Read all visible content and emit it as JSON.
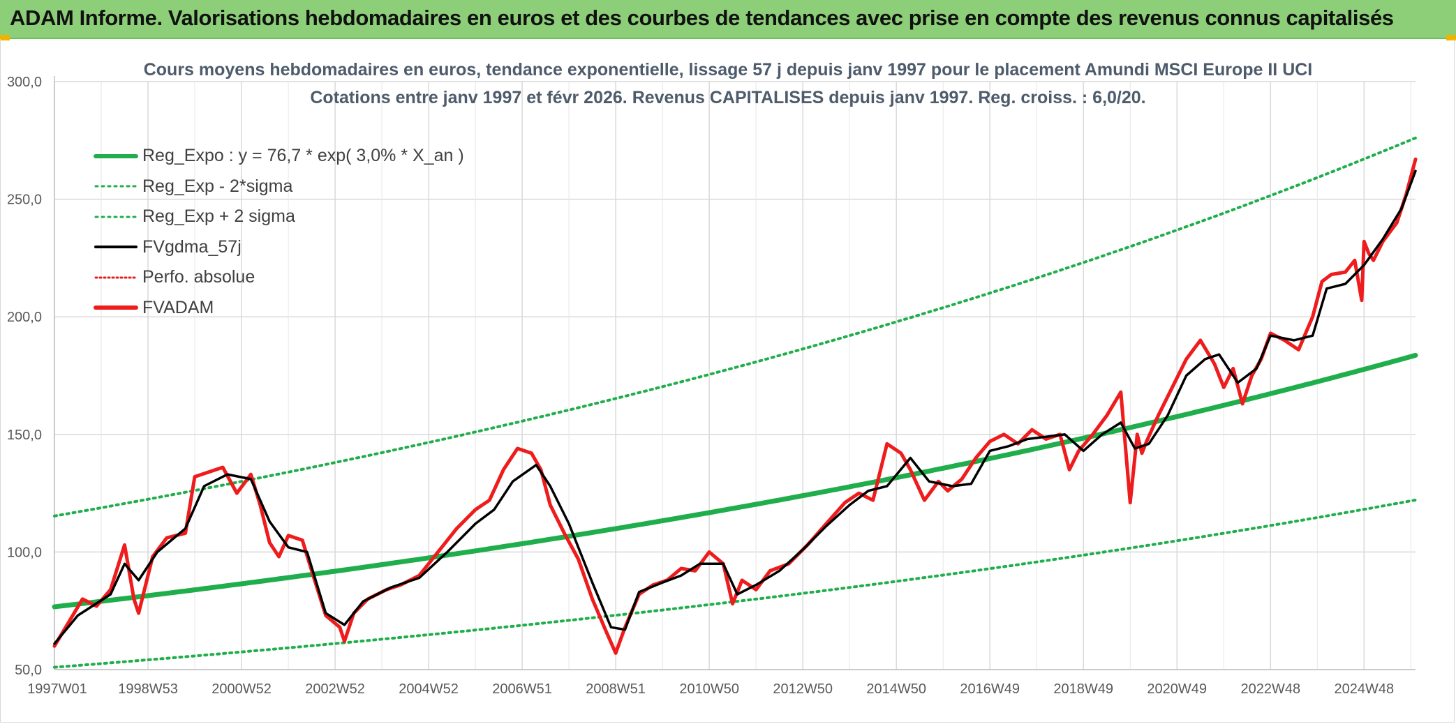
{
  "banner": {
    "title": "ADAM Informe. Valorisations hebdomadaires en euros et des courbes de tendances avec prise en compte des revenus connus capitalisés"
  },
  "chart_data": {
    "type": "line",
    "title": "Cours moyens hebdomadaires en euros, tendance exponentielle, lissage 57 j depuis janv 1997 pour le placement Amundi MSCI Europe II UCI",
    "subtitle": "Cotations entre janv 1997 et févr 2026. Revenus CAPITALISES depuis janv 1997. Reg. croiss. : 6,0/20.",
    "xlabel": "",
    "ylabel": "",
    "x_range_years": [
      1997.0,
      2026.1
    ],
    "ylim": [
      50,
      300
    ],
    "y_ticks": [
      "50,0",
      "100,0",
      "150,0",
      "200,0",
      "250,0",
      "300,0"
    ],
    "y_tick_values": [
      50,
      100,
      150,
      200,
      250,
      300
    ],
    "x_tick_labels": [
      "1997W01",
      "1998W53",
      "2000W52",
      "2002W52",
      "2004W52",
      "2006W51",
      "2008W51",
      "2010W50",
      "2012W50",
      "2014W50",
      "2016W49",
      "2018W49",
      "2020W49",
      "2022W48",
      "2024W48"
    ],
    "x_tick_years": [
      1997.0,
      1999.0,
      2001.0,
      2003.0,
      2005.0,
      2007.0,
      2009.0,
      2011.0,
      2013.0,
      2015.0,
      2017.0,
      2019.0,
      2021.0,
      2023.0,
      2025.0
    ],
    "grid": true,
    "legend_position": "top-left",
    "regression": {
      "a": 76.7,
      "rate": 0.03,
      "sigma_band": 38.5
    },
    "series": [
      {
        "name": "Reg_Expo : y = 76,7 * exp( 3,0% *  X_an )",
        "style": "solid-thick",
        "color": "#1fae4b",
        "x": [
          1997,
          2001,
          2005,
          2009,
          2013,
          2017,
          2021,
          2026.1
        ],
        "values": [
          76.7,
          86.4,
          97.5,
          109.9,
          123.9,
          139.7,
          157.5,
          185.5
        ]
      },
      {
        "name": "Reg_Exp - 2*sigma",
        "style": "dotted",
        "color": "#1fae4b",
        "x": [
          1997,
          2001,
          2005,
          2009,
          2013,
          2017,
          2021,
          2026.1
        ],
        "values": [
          51.0,
          57.5,
          64.9,
          73.1,
          82.4,
          93.0,
          104.8,
          123.5
        ]
      },
      {
        "name": "Reg_Exp + 2 sigma",
        "style": "dotted",
        "color": "#1fae4b",
        "x": [
          1997,
          2001,
          2005,
          2009,
          2013,
          2017,
          2021,
          2026.1
        ],
        "values": [
          115.3,
          130.0,
          146.6,
          165.3,
          186.3,
          210.0,
          236.8,
          278.5
        ]
      },
      {
        "name": "FVgdma_57j",
        "style": "solid",
        "color": "#000000",
        "x": [
          1997.0,
          1997.5,
          1998.2,
          1998.5,
          1998.8,
          1999.2,
          1999.8,
          2000.2,
          2000.7,
          2001.2,
          2001.6,
          2002.0,
          2002.4,
          2002.8,
          2003.2,
          2003.6,
          2004.2,
          2004.8,
          2005.4,
          2006.0,
          2006.4,
          2006.8,
          2007.3,
          2007.6,
          2008.0,
          2008.5,
          2008.9,
          2009.2,
          2009.5,
          2010.0,
          2010.4,
          2010.8,
          2011.3,
          2011.6,
          2012.0,
          2012.5,
          2013.0,
          2013.5,
          2014.0,
          2014.4,
          2014.8,
          2015.3,
          2015.7,
          2016.2,
          2016.6,
          2017.0,
          2017.4,
          2017.8,
          2018.2,
          2018.6,
          2019.0,
          2019.4,
          2019.8,
          2020.1,
          2020.4,
          2020.8,
          2021.2,
          2021.6,
          2021.9,
          2022.3,
          2022.7,
          2023.0,
          2023.5,
          2023.9,
          2024.2,
          2024.6,
          2025.0,
          2025.4,
          2025.8,
          2026.1
        ],
        "values": [
          61,
          73,
          82,
          95,
          88,
          100,
          110,
          128,
          133,
          131,
          113,
          102,
          100,
          74,
          69,
          79,
          85,
          89,
          100,
          112,
          118,
          130,
          137,
          128,
          112,
          87,
          68,
          67,
          83,
          87,
          90,
          95,
          95,
          82,
          86,
          92,
          101,
          111,
          120,
          126,
          128,
          140,
          130,
          128,
          129,
          143,
          145,
          148,
          149,
          150,
          143,
          150,
          155,
          144,
          146,
          158,
          175,
          182,
          184,
          172,
          178,
          192,
          190,
          192,
          212,
          214,
          222,
          233,
          246,
          262
        ]
      },
      {
        "name": "Perfo. absolue",
        "style": "dotted",
        "color": "#e32020",
        "x": [],
        "values": []
      },
      {
        "name": "FVADAM",
        "style": "solid-thick",
        "color": "#ee1c1c",
        "x": [
          1997.0,
          1997.3,
          1997.6,
          1997.9,
          1998.2,
          1998.5,
          1998.7,
          1998.8,
          1999.1,
          1999.4,
          1999.8,
          2000.0,
          2000.3,
          2000.6,
          2000.9,
          2001.2,
          2001.4,
          2001.6,
          2001.8,
          2002.0,
          2002.3,
          2002.5,
          2002.8,
          2003.1,
          2003.2,
          2003.4,
          2003.7,
          2004.1,
          2004.4,
          2004.8,
          2005.2,
          2005.6,
          2006.0,
          2006.3,
          2006.6,
          2006.9,
          2007.2,
          2007.4,
          2007.6,
          2007.9,
          2008.2,
          2008.5,
          2008.8,
          2009.0,
          2009.2,
          2009.5,
          2009.8,
          2010.1,
          2010.4,
          2010.7,
          2011.0,
          2011.3,
          2011.5,
          2011.7,
          2012.0,
          2012.3,
          2012.7,
          2013.1,
          2013.5,
          2013.9,
          2014.2,
          2014.5,
          2014.8,
          2015.1,
          2015.3,
          2015.6,
          2015.9,
          2016.1,
          2016.4,
          2016.7,
          2017.0,
          2017.3,
          2017.6,
          2017.9,
          2018.2,
          2018.5,
          2018.7,
          2018.9,
          2019.2,
          2019.5,
          2019.8,
          2020.0,
          2020.15,
          2020.25,
          2020.35,
          2020.6,
          2020.9,
          2021.2,
          2021.5,
          2021.8,
          2022.0,
          2022.2,
          2022.4,
          2022.6,
          2022.8,
          2023.0,
          2023.3,
          2023.6,
          2023.9,
          2024.1,
          2024.3,
          2024.6,
          2024.8,
          2024.95,
          2025.0,
          2025.1,
          2025.2,
          2025.4,
          2025.7,
          2025.9,
          2026.1
        ],
        "values": [
          60,
          70,
          80,
          77,
          84,
          103,
          80,
          74,
          98,
          106,
          108,
          132,
          134,
          136,
          125,
          133,
          120,
          104,
          98,
          107,
          105,
          92,
          73,
          68,
          62,
          74,
          80,
          84,
          86,
          90,
          100,
          110,
          118,
          122,
          135,
          144,
          142,
          135,
          120,
          108,
          97,
          80,
          66,
          57,
          68,
          82,
          86,
          88,
          93,
          92,
          100,
          95,
          78,
          88,
          84,
          92,
          95,
          103,
          112,
          121,
          125,
          122,
          146,
          142,
          135,
          122,
          130,
          126,
          131,
          140,
          147,
          150,
          146,
          152,
          148,
          150,
          135,
          143,
          150,
          158,
          168,
          121,
          150,
          142,
          147,
          158,
          170,
          182,
          190,
          180,
          170,
          178,
          163,
          175,
          182,
          193,
          190,
          186,
          200,
          215,
          218,
          219,
          224,
          207,
          232,
          227,
          224,
          232,
          240,
          252,
          267
        ]
      }
    ]
  },
  "legend": {
    "items": [
      {
        "label": "Reg_Expo : y = 76,7 * exp( 3,0% *  X_an )",
        "color": "#1fae4b",
        "style": "solid-thick"
      },
      {
        "label": "Reg_Exp - 2*sigma",
        "color": "#1fae4b",
        "style": "dotted"
      },
      {
        "label": "Reg_Exp + 2 sigma",
        "color": "#1fae4b",
        "style": "dotted"
      },
      {
        "label": "FVgdma_57j",
        "color": "#000000",
        "style": "solid"
      },
      {
        "label": "Perfo. absolue",
        "color": "#e32020",
        "style": "dotted"
      },
      {
        "label": "FVADAM",
        "color": "#ee1c1c",
        "style": "solid-thick"
      }
    ]
  }
}
